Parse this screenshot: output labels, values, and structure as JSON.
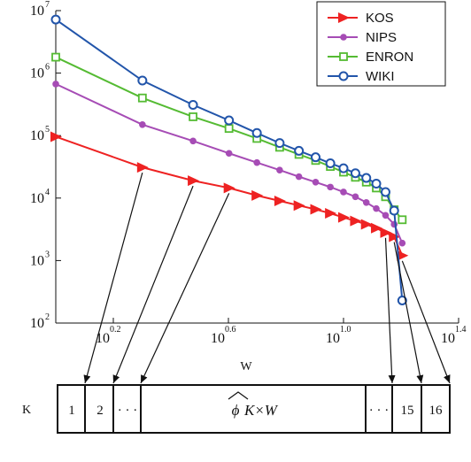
{
  "chart_data": {
    "type": "line",
    "title": "",
    "xlabel": "",
    "ylabel": "",
    "x_scale": "log",
    "y_scale": "log",
    "xlim": [
      1,
      16
    ],
    "ylim": [
      100,
      10000000
    ],
    "x_tick_labels": [
      {
        "base": "10",
        "exp": "0.2",
        "value": 1.585
      },
      {
        "base": "10",
        "exp": "0.6",
        "value": 3.981
      },
      {
        "base": "10",
        "exp": "1.0",
        "value": 10
      },
      {
        "base": "10",
        "exp": "1.4",
        "value": 25.12
      }
    ],
    "y_tick_labels": [
      {
        "base": "10",
        "exp": "2",
        "value": 100
      },
      {
        "base": "10",
        "exp": "3",
        "value": 1000
      },
      {
        "base": "10",
        "exp": "4",
        "value": 10000
      },
      {
        "base": "10",
        "exp": "5",
        "value": 100000
      },
      {
        "base": "10",
        "exp": "6",
        "value": 1000000
      },
      {
        "base": "10",
        "exp": "7",
        "value": 10000000
      }
    ],
    "legend_position": "top-right",
    "series": [
      {
        "name": "KOS",
        "color": "#ee2222",
        "marker": "triangle-right",
        "x": [
          1,
          2,
          3,
          4,
          5,
          6,
          7,
          8,
          9,
          10,
          11,
          12,
          13,
          14,
          15,
          16
        ],
        "y": [
          96000,
          31000,
          19000,
          14500,
          11000,
          9000,
          7600,
          6600,
          5700,
          4900,
          4300,
          3800,
          3300,
          2800,
          2400,
          1200
        ]
      },
      {
        "name": "NIPS",
        "color": "#a64cb5",
        "marker": "circle",
        "x": [
          1,
          2,
          3,
          4,
          5,
          6,
          7,
          8,
          9,
          10,
          11,
          12,
          13,
          14,
          15,
          16
        ],
        "y": [
          670000,
          150000,
          82000,
          52000,
          37000,
          28000,
          22000,
          18000,
          15000,
          12500,
          10500,
          8500,
          6800,
          5300,
          3800,
          1900
        ]
      },
      {
        "name": "ENRON",
        "color": "#55bb33",
        "marker": "square",
        "x": [
          1,
          2,
          3,
          4,
          5,
          6,
          7,
          8,
          9,
          10,
          11,
          12,
          13,
          14,
          15,
          16
        ],
        "y": [
          1800000,
          400000,
          200000,
          130000,
          90000,
          65000,
          50000,
          40000,
          32000,
          26000,
          21500,
          18000,
          14500,
          10500,
          6500,
          4500
        ]
      },
      {
        "name": "WIKI",
        "color": "#2255aa",
        "marker": "circle-open",
        "x": [
          1,
          2,
          3,
          4,
          5,
          6,
          7,
          8,
          9,
          10,
          11,
          12,
          13,
          14,
          15,
          16
        ],
        "y": [
          7200000,
          760000,
          310000,
          175000,
          110000,
          76000,
          57000,
          45000,
          36000,
          30000,
          25000,
          21000,
          17000,
          12500,
          6300,
          230
        ]
      }
    ]
  },
  "diagram": {
    "axis_label": "W",
    "row_label": "K",
    "cells": [
      "1",
      "2",
      "· · ·",
      "· · ·",
      "15",
      "16"
    ],
    "phi_symbol": "ϕ",
    "phi_subscript": "K×W"
  }
}
